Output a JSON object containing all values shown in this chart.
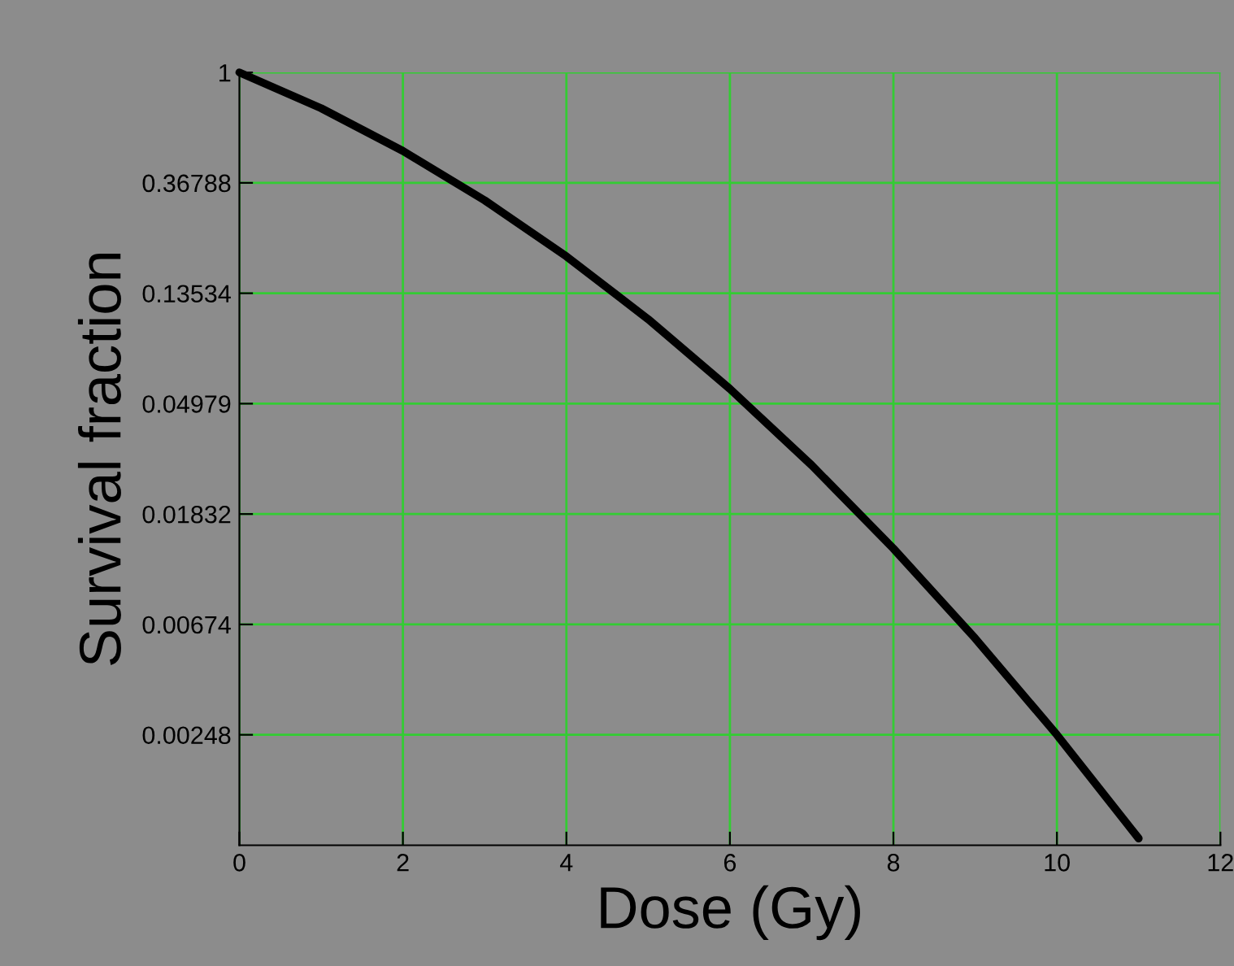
{
  "chart_data": {
    "type": "line",
    "xlabel": "Dose (Gy)",
    "ylabel": "Survival fraction",
    "x": [
      0,
      1,
      2,
      3,
      4,
      5,
      6,
      7,
      8,
      9,
      10,
      11
    ],
    "series": [
      {
        "color": "#000000",
        "values": [
          1,
          0.723,
          0.491,
          0.314,
          0.189,
          0.107,
          0.0569,
          0.0285,
          0.0134,
          0.00594,
          0.00248,
          0.00097
        ]
      }
    ],
    "log": "y",
    "xlim": [
      0,
      12
    ],
    "xticks": [
      0,
      2,
      4,
      6,
      8,
      10,
      12
    ],
    "ylim": [
      0.000912,
      1
    ],
    "yticks": [
      {
        "value": 1,
        "label": "1"
      },
      {
        "value": 0.36788,
        "label": "0.36788"
      },
      {
        "value": 0.13534,
        "label": "0.13534"
      },
      {
        "value": 0.04979,
        "label": "0.04979"
      },
      {
        "value": 0.01832,
        "label": "0.01832"
      },
      {
        "value": 0.00674,
        "label": "0.00674"
      },
      {
        "value": 0.00248,
        "label": "0.00248"
      }
    ],
    "grid": true,
    "marker": "none",
    "line_style": "solid"
  }
}
